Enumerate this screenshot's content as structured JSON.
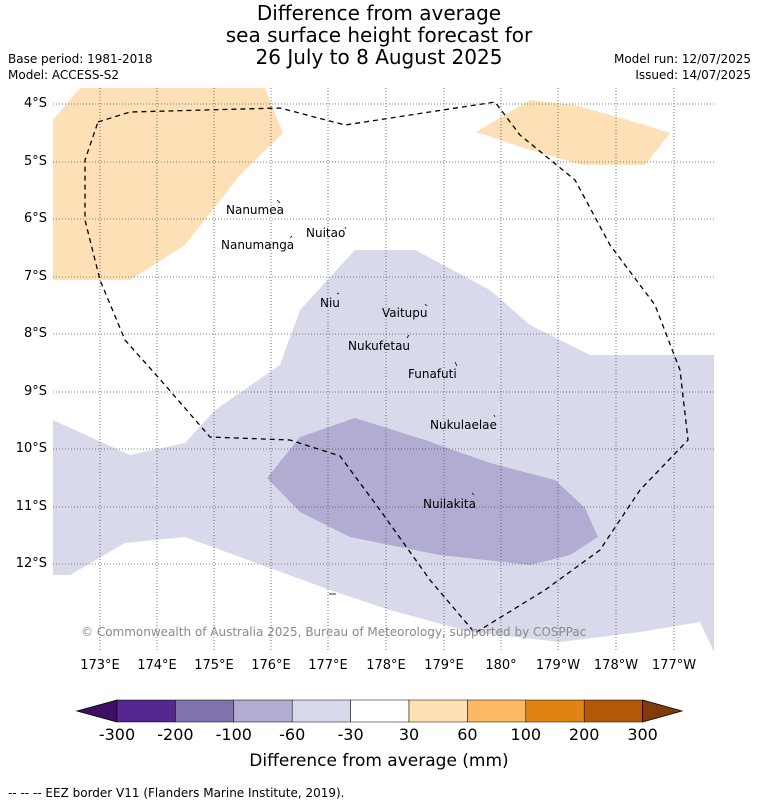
{
  "title": {
    "line1": "Difference from average",
    "line2": "sea surface height forecast for",
    "line3": "26 July to 8 August 2025"
  },
  "meta": {
    "base_period": "Base period: 1981-2018",
    "model": "Model: ACCESS-S2",
    "model_run": "Model run: 12/07/2025",
    "issued": "Issued: 14/07/2025"
  },
  "axes": {
    "y_labels": [
      "4°S",
      "5°S",
      "6°S",
      "7°S",
      "8°S",
      "9°S",
      "10°S",
      "11°S",
      "12°S"
    ],
    "x_labels": [
      "173°E",
      "174°E",
      "175°E",
      "176°E",
      "177°E",
      "178°E",
      "179°E",
      "180°",
      "179°W",
      "178°W",
      "177°W"
    ]
  },
  "places": [
    {
      "name": "Nanumea"
    },
    {
      "name": "Nuitao"
    },
    {
      "name": "Nanumanga"
    },
    {
      "name": "Niu"
    },
    {
      "name": "Vaitupu"
    },
    {
      "name": "Nukufetau"
    },
    {
      "name": "Funafuti"
    },
    {
      "name": "Nukulaelae"
    },
    {
      "name": "Nuilakita"
    }
  ],
  "credit": "© Commonwealth of Australia 2025, Bureau of Meteorology, supported by COSPPac",
  "colorbar": {
    "title": "Difference from average (mm)",
    "ticks": [
      "-300",
      "-200",
      "-100",
      "-60",
      "-30",
      "30",
      "60",
      "100",
      "200",
      "300"
    ],
    "colors": [
      "#3f0f65",
      "#54278f",
      "#8073ac",
      "#b2abd2",
      "#d8daeb",
      "#ffffff",
      "#fee0b6",
      "#fdb863",
      "#e08214",
      "#b35806",
      "#7f3b08"
    ]
  },
  "footer": "--  --  -- EEZ border V11 (Flanders Marine Institute, 2019)."
}
